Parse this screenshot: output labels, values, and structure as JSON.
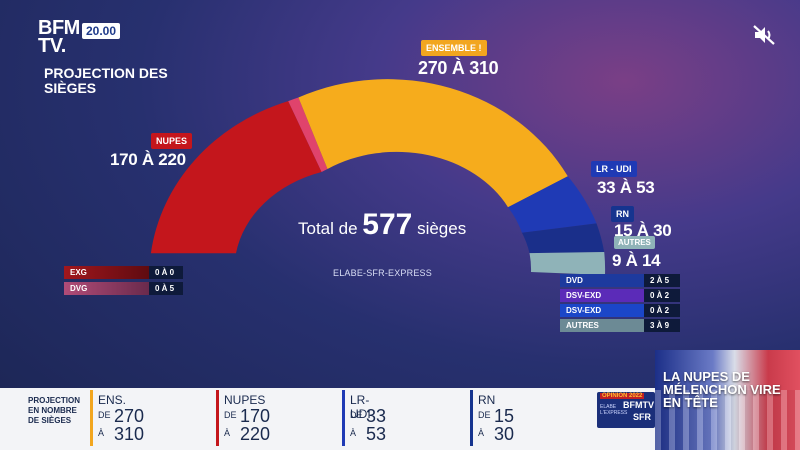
{
  "channel": {
    "logo_line1": "BFM",
    "logo_line2": "TV.",
    "time": "20.00"
  },
  "title": "PROJECTION DES SIÈGES",
  "parties": {
    "ensemble": {
      "tag": "ENSEMBLE !",
      "range": "270 À 310",
      "color": "#f2a61f"
    },
    "nupes": {
      "tag": "NUPES",
      "range": "170 À 220",
      "color": "#c4161c"
    },
    "lr_udi": {
      "tag": "LR - UDI",
      "range": "33 À 53",
      "color": "#1f3ab5"
    },
    "rn": {
      "tag": "RN",
      "range": "15 À 30",
      "color": "#16348f"
    },
    "autres": {
      "tag": "AUTRES",
      "range": "9 À 14",
      "color": "#8fb3b8"
    }
  },
  "total": {
    "prefix": "Total de",
    "value": "577",
    "suffix": "sièges"
  },
  "source": "ELABE-SFR-EXPRESS",
  "small_rows_left": [
    {
      "label": "EXG",
      "value": "0 À 0"
    },
    {
      "label": "DVG",
      "value": "0 À 5"
    }
  ],
  "small_rows_right": [
    {
      "label": "DVD",
      "value": "2 À 5"
    },
    {
      "label": "DSV-EXD",
      "value": "0 À 2"
    },
    {
      "label": "DSV-EXD",
      "value": "0 À 2"
    },
    {
      "label": "AUTRES",
      "value": "3 À 9"
    }
  ],
  "ticker": {
    "title": "PROJECTION EN NOMBRE DE SIÈGES",
    "items": [
      {
        "name": "ENS.",
        "de": "DE",
        "a": "À",
        "min": "270",
        "max": "310"
      },
      {
        "name": "NUPES",
        "de": "DE",
        "a": "À",
        "min": "170",
        "max": "220"
      },
      {
        "name": "LR-UDI",
        "de": "DE",
        "a": "À",
        "min": "33",
        "max": "53"
      },
      {
        "name": "RN",
        "de": "DE",
        "a": "À",
        "min": "15",
        "max": "30"
      }
    ]
  },
  "promo": {
    "tag": "OPINION 2022",
    "brand1": "BFMTV",
    "brand2": "SFR",
    "small": "ELABE L'EXPRESS"
  },
  "news": {
    "headline": "LA NUPES DE MÉLENCHON VIRE EN TÊTE"
  },
  "icons": {
    "mute": "speaker-muted-icon"
  }
}
